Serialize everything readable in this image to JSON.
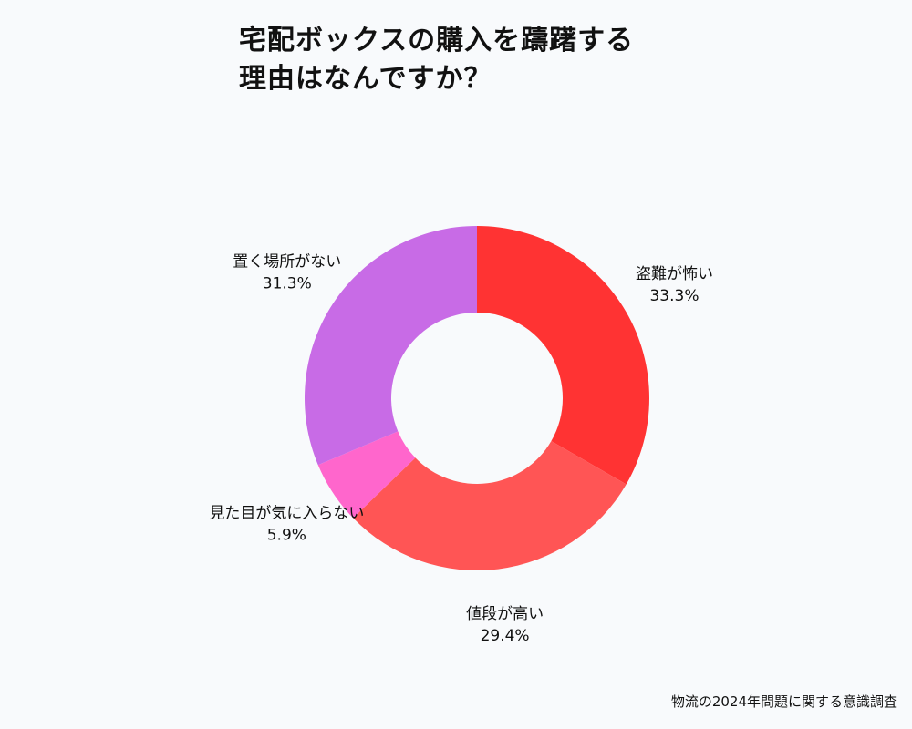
{
  "title_lines": [
    "宅配ボックスの購入を躊躇する",
    "理由はなんですか？"
  ],
  "source": "物流の2024年問題に関する意識調査",
  "chart_data": {
    "type": "pie",
    "variant": "donut",
    "title": "宅配ボックスの購入を躊躇する理由はなんですか？",
    "start": "12 o'clock, clockwise",
    "slices": [
      {
        "label": "盗難が怖い",
        "value": 33.3,
        "value_label": "33.3%",
        "color": "#ff3333"
      },
      {
        "label": "値段が高い",
        "value": 29.4,
        "value_label": "29.4%",
        "color": "#ff5555"
      },
      {
        "label": "見た目が気に入らない",
        "value": 5.9,
        "value_label": "5.9%",
        "color": "#ff66cc"
      },
      {
        "label": "置く場所がない",
        "value": 31.3,
        "value_label": "31.3%",
        "color": "#c86be6"
      }
    ],
    "unit": "%"
  }
}
